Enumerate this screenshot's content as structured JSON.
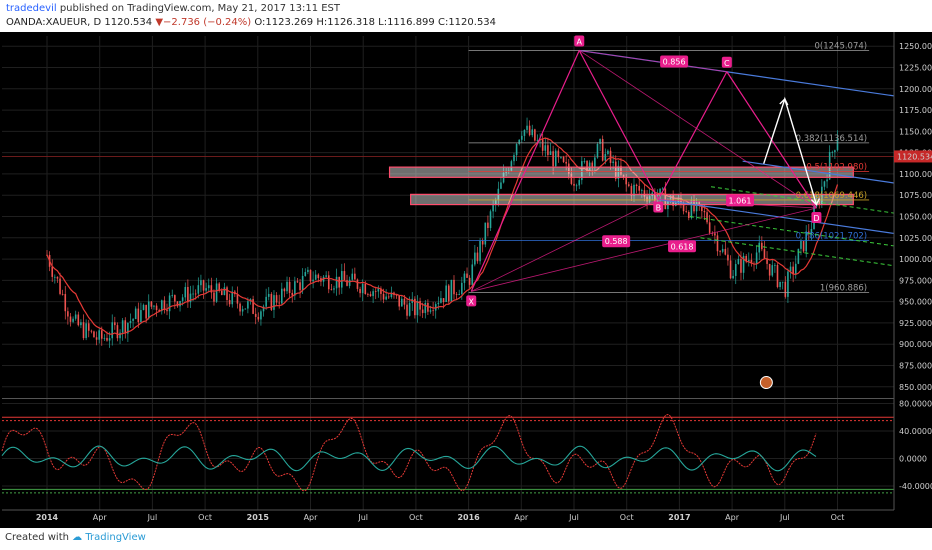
{
  "header": {
    "author": "tradedevil",
    "published_text": "published on TradingView.com, May 21, 2017 13:11 EST",
    "symbol": "OANDA:XAUEUR, D",
    "last": "1120.534",
    "change": "−2.736 (−0.24%)",
    "ohlc_o": "O:1123.269",
    "ohlc_h": "H:1126.318",
    "ohlc_l": "L:1116.899",
    "ohlc_c": "C:1120.534"
  },
  "footer": {
    "created_with": "Created with",
    "brand": "TradingView"
  },
  "colors": {
    "background": "#000000",
    "candle_up": "#26a69a",
    "candle_down": "#ef5350",
    "ma": "#e53935",
    "pattern": "#e91e8c",
    "channel": "#4a7bdc",
    "fib_grey": "#9e9e9e",
    "zone": "#f5f5f5",
    "osc_red": "#e53935",
    "osc_green": "#43a047",
    "osc_teal": "#26a69a"
  },
  "chart_data": [
    {
      "type": "candlestick",
      "title": "OANDA:XAUEUR, D",
      "x_ticks": [
        "2014",
        "Apr",
        "Jul",
        "Oct",
        "2015",
        "Apr",
        "Jul",
        "Oct",
        "2016",
        "Apr",
        "Jul",
        "Oct",
        "2017",
        "Apr",
        "Jul",
        "Oct"
      ],
      "y_ticks": [
        "1250.000",
        "1225.000",
        "1200.000",
        "1175.000",
        "1150.000",
        "1125.000",
        "1100.000",
        "1075.000",
        "1050.000",
        "1025.000",
        "1000.000",
        "975.000",
        "950.000",
        "925.000",
        "900.000",
        "875.000",
        "850.000"
      ],
      "ylim": [
        838,
        1262
      ],
      "last_price_label": "1120.534",
      "trend": {
        "x": [
          0,
          0.5,
          1,
          2,
          3,
          4,
          5,
          6,
          7,
          8,
          9,
          10,
          10.5,
          11,
          12,
          12.5,
          13,
          13.5,
          14,
          14.5,
          15
        ],
        "close": [
          1005,
          925,
          905,
          945,
          965,
          940,
          980,
          970,
          940,
          975,
          1155,
          1095,
          1130,
          1085,
          1065,
          1050,
          985,
          1010,
          965,
          1040,
          1148
        ]
      },
      "harmonic_points": [
        {
          "label": "X",
          "price": 962
        },
        {
          "label": "A",
          "price": 1245
        },
        {
          "label": "B",
          "price": 1070
        },
        {
          "label": "C",
          "price": 1220
        },
        {
          "label": "D",
          "price": 1060
        }
      ],
      "harmonic_ratios": [
        "0.856",
        "0.588",
        "0.618",
        "1.061"
      ],
      "fib_levels": [
        {
          "ratio": "0",
          "price": 1245.074,
          "label": "0(1245.074)"
        },
        {
          "ratio": "0.382",
          "price": 1136.514,
          "label": "0.382(1136.514)"
        },
        {
          "ratio": "0.5",
          "price": 1102.98,
          "label": "0.5(1102.980)"
        },
        {
          "ratio": "0.618",
          "price": 1069.446,
          "label": "0.618(1069.446)"
        },
        {
          "ratio": "0.786",
          "price": 1021.702,
          "label": "0.786(1021.702)"
        },
        {
          "ratio": "1",
          "price": 960.886,
          "label": "1(960.886)"
        }
      ]
    },
    {
      "type": "line",
      "title": "oscillator",
      "y_ticks": [
        "80.0000",
        "40.0000",
        "0.0000",
        "-40.0000"
      ],
      "ylim": [
        -75,
        85
      ],
      "levels": [
        60,
        55,
        -45,
        -50
      ]
    }
  ]
}
